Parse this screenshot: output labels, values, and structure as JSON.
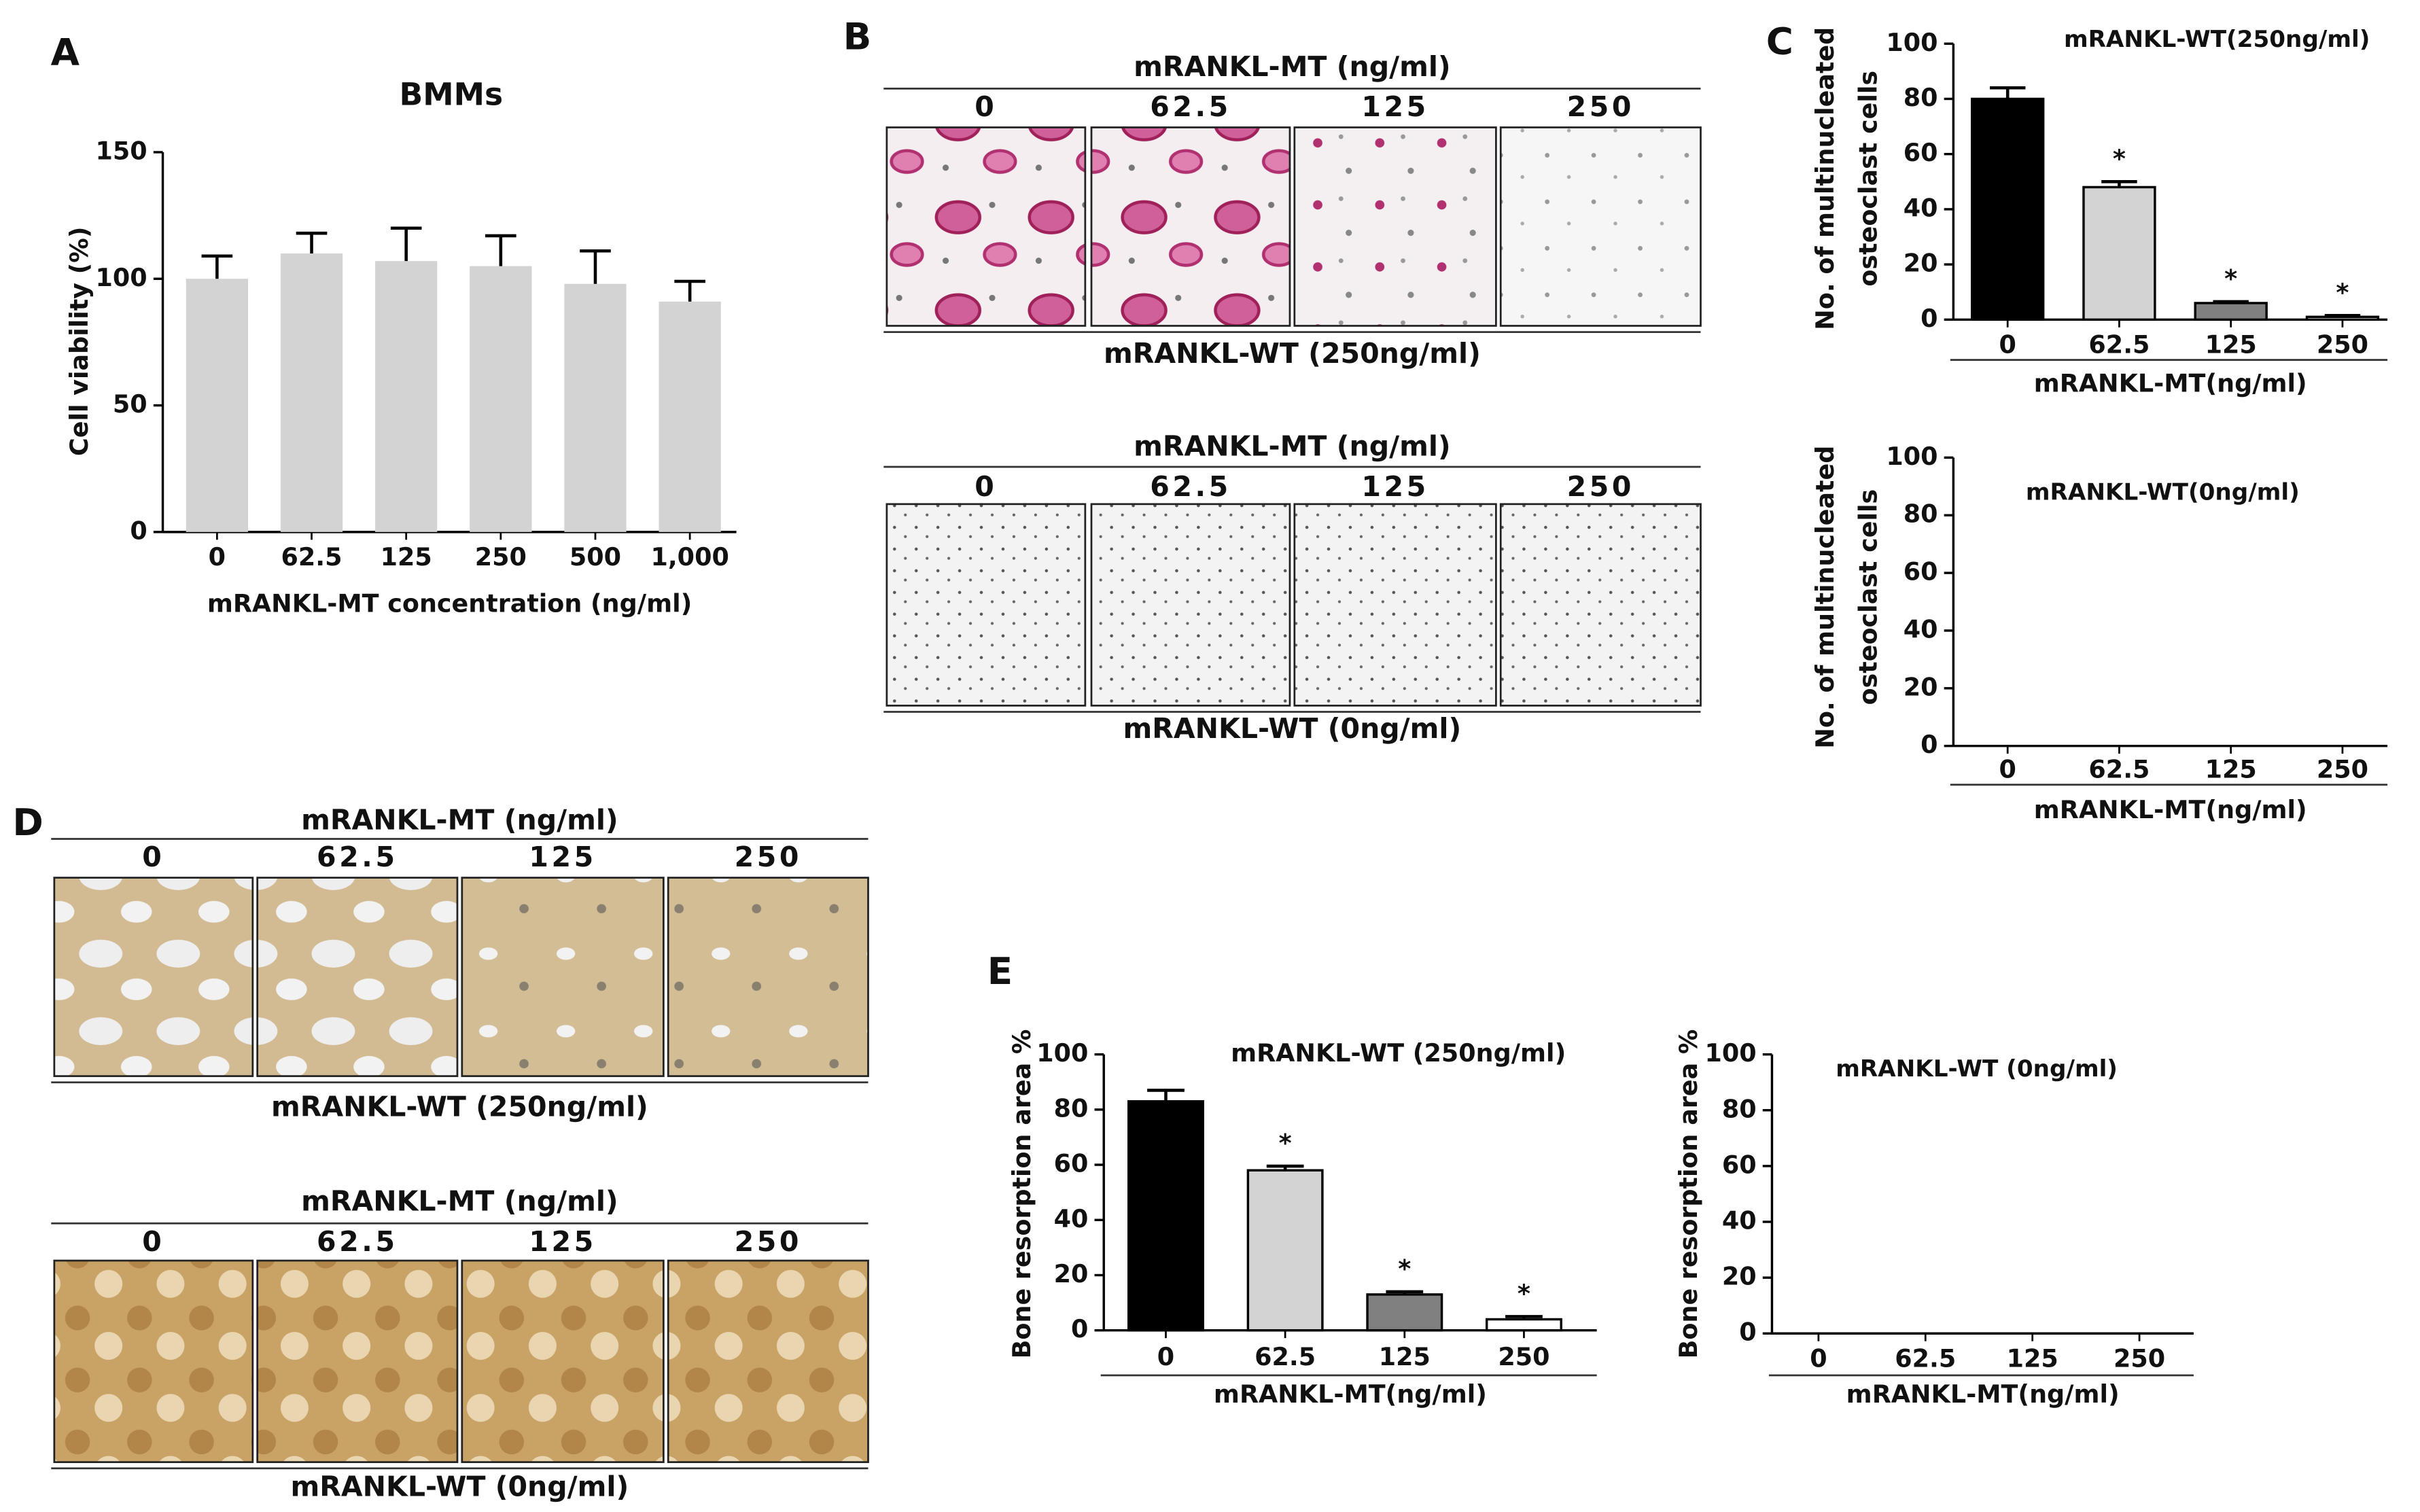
{
  "panel_labels": [
    "A",
    "B",
    "C",
    "D",
    "E"
  ],
  "image_panels": [
    {
      "header": "mRANKL-MT (ng/ml)",
      "columns": [
        "0",
        "62.5",
        "125",
        "250"
      ],
      "footer": "mRANKL-WT (250ng/ml)"
    },
    {
      "header": "mRANKL-MT (ng/ml)",
      "columns": [
        "0",
        "62.5",
        "125",
        "250"
      ],
      "footer": "mRANKL-WT (0ng/ml)"
    },
    {
      "header": "mRANKL-MT (ng/ml)",
      "columns": [
        "0",
        "62.5",
        "125",
        "250"
      ],
      "footer": "mRANKL-WT (250ng/ml)"
    },
    {
      "header": "mRANKL-MT (ng/ml)",
      "columns": [
        "0",
        "62.5",
        "125",
        "250"
      ],
      "footer": "mRANKL-WT (0ng/ml)"
    }
  ],
  "chart_data": [
    {
      "type": "bar",
      "title": "BMMs",
      "ylabel": [
        "Cell viability (%)"
      ],
      "xlabel": "mRANKL-MT concentration (ng/ml)",
      "categories": [
        "0",
        "62.5",
        "125",
        "250",
        "500",
        "1,000"
      ],
      "values": [
        100,
        110,
        107,
        105,
        98,
        91
      ],
      "errors": [
        9,
        8,
        13,
        12,
        13,
        8
      ],
      "color": "#d3d3d3",
      "ylim": [
        0,
        150
      ],
      "yticks": [
        0,
        50,
        100,
        150
      ]
    },
    {
      "type": "bar",
      "title": "mRANKL-WT(250ng/ml)",
      "ylabel": [
        "No. of multinucleated",
        "osteoclast cells"
      ],
      "xlabel": "mRANKL-MT(ng/ml)",
      "categories": [
        "0",
        "62.5",
        "125",
        "250"
      ],
      "values": [
        80,
        48,
        6,
        1
      ],
      "errors": [
        4,
        2,
        0.5,
        0.5
      ],
      "significance": [
        null,
        "*",
        "*",
        "*"
      ],
      "colors": [
        "#000000",
        "#d3d3d3",
        "#808080",
        "#ffffff"
      ],
      "edgecolor": "#000000",
      "ylim": [
        0,
        100
      ],
      "yticks": [
        0,
        20,
        40,
        60,
        80,
        100
      ]
    },
    {
      "type": "bar",
      "title": "mRANKL-WT(0ng/ml)",
      "ylabel": [
        "No. of multinucleated",
        "osteoclast cells"
      ],
      "xlabel": "mRANKL-MT(ng/ml)",
      "categories": [
        "0",
        "62.5",
        "125",
        "250"
      ],
      "values": [
        0,
        0,
        0,
        0
      ],
      "colors": [
        "#000000",
        "#d3d3d3",
        "#808080",
        "#ffffff"
      ],
      "edgecolor": "#000000",
      "ylim": [
        0,
        100
      ],
      "yticks": [
        0,
        20,
        40,
        60,
        80,
        100
      ]
    },
    {
      "type": "bar",
      "title": "mRANKL-WT (250ng/ml)",
      "ylabel": [
        "Bone resorption area %"
      ],
      "xlabel": "mRANKL-MT(ng/ml)",
      "categories": [
        "0",
        "62.5",
        "125",
        "250"
      ],
      "values": [
        83,
        58,
        13,
        4
      ],
      "errors": [
        4,
        1.5,
        1,
        1
      ],
      "significance": [
        null,
        "*",
        "*",
        "*"
      ],
      "colors": [
        "#000000",
        "#d3d3d3",
        "#808080",
        "#ffffff"
      ],
      "edgecolor": "#000000",
      "ylim": [
        0,
        100
      ],
      "yticks": [
        0,
        20,
        40,
        60,
        80,
        100
      ]
    },
    {
      "type": "bar",
      "title": "mRANKL-WT (0ng/ml)",
      "ylabel": [
        "Bone resorption area %"
      ],
      "xlabel": "mRANKL-MT(ng/ml)",
      "categories": [
        "0",
        "62.5",
        "125",
        "250"
      ],
      "values": [
        0,
        0,
        0,
        0
      ],
      "colors": [
        "#000000",
        "#d3d3d3",
        "#808080",
        "#ffffff"
      ],
      "edgecolor": "#000000",
      "ylim": [
        0,
        100
      ],
      "yticks": [
        0,
        20,
        40,
        60,
        80,
        100
      ]
    }
  ]
}
